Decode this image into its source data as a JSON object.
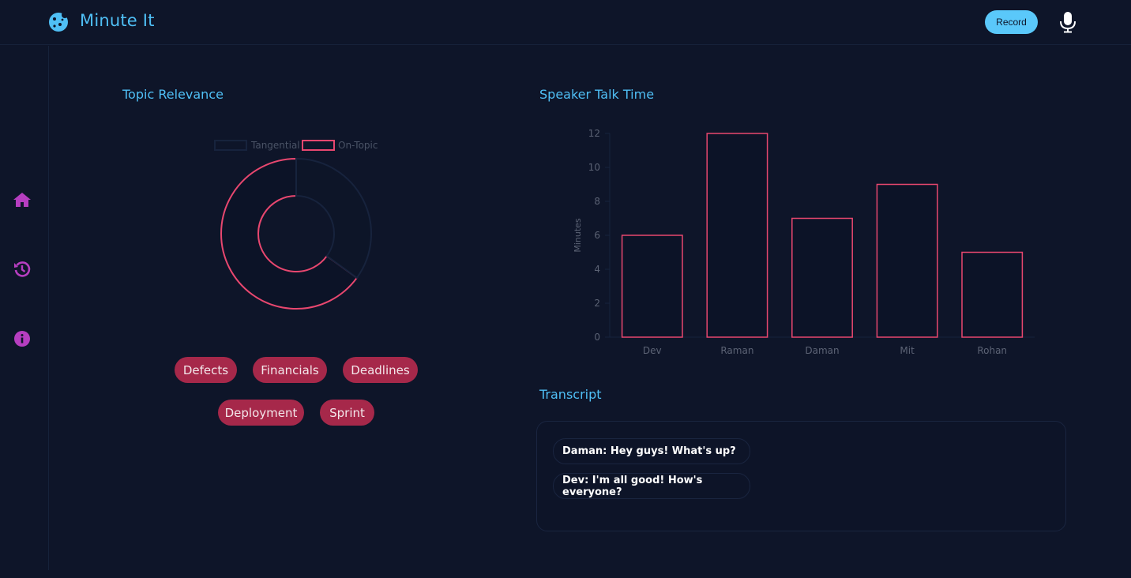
{
  "header": {
    "brand_title": "Minute It",
    "record_label": "Record",
    "brand_icon": "cookie-icon",
    "mic_icon": "microphone-icon"
  },
  "sidebar": {
    "items": [
      {
        "icon": "home-icon"
      },
      {
        "icon": "history-icon"
      },
      {
        "icon": "info-icon"
      }
    ]
  },
  "topic_relevance": {
    "title": "Topic Relevance",
    "tags": [
      "Defects",
      "Financials",
      "Deadlines",
      "Deployment",
      "Sprint"
    ]
  },
  "speaker_talk_time": {
    "title": "Speaker Talk Time"
  },
  "transcript": {
    "title": "Transcript",
    "messages": [
      "Daman: Hey guys! What's up?",
      "Dev: I'm all good! How's everyone?"
    ]
  },
  "colors": {
    "accent": "#4fbff5",
    "chart_stroke": "#e8476f",
    "tag_bg": "#a6284a",
    "nav_icon": "#b63ec0",
    "background": "#0e1529"
  },
  "chart_data": [
    {
      "type": "pie",
      "labels": [
        "Tangential",
        "On-Topic"
      ],
      "values": [
        35,
        65
      ],
      "legend": "top"
    },
    {
      "type": "bar",
      "categories": [
        "Dev",
        "Raman",
        "Daman",
        "Mit",
        "Rohan"
      ],
      "values": [
        6,
        12,
        7,
        9,
        5
      ],
      "ylabel": "Minutes",
      "yticks": [
        "0",
        "2",
        "4",
        "6",
        "8",
        "10",
        "12"
      ],
      "ylim": [
        0,
        12
      ],
      "grid": false
    }
  ]
}
